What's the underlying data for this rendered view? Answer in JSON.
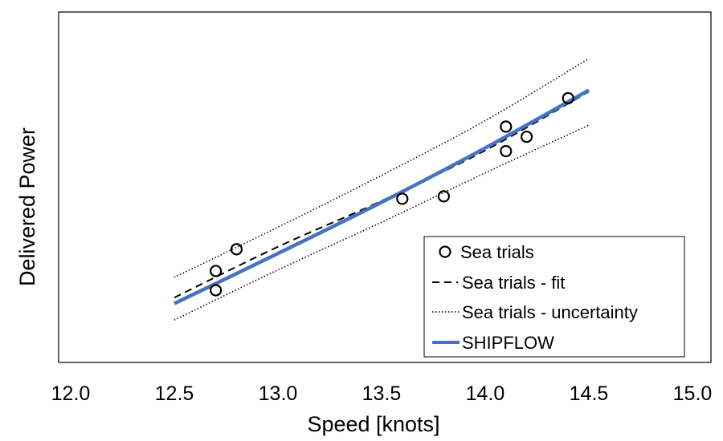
{
  "chart_data": {
    "type": "scatter",
    "xlabel": "Speed [knots]",
    "ylabel": "Delivered Power",
    "xlim": [
      12.0,
      15.0
    ],
    "x_ticks": [
      "12.0",
      "12.5",
      "13.0",
      "13.5",
      "14.0",
      "14.5",
      "15.0"
    ],
    "y_ticks_shown": false,
    "ylim": [
      0,
      100
    ],
    "grid": false,
    "legend_position": "bottom-right",
    "series": [
      {
        "name": "Sea trials",
        "kind": "markers",
        "marker": "open-circle",
        "color": "#000000",
        "points": [
          {
            "x": 12.7,
            "y": 26.1
          },
          {
            "x": 12.7,
            "y": 20.6
          },
          {
            "x": 12.8,
            "y": 32.3
          },
          {
            "x": 13.6,
            "y": 46.7
          },
          {
            "x": 13.8,
            "y": 47.4
          },
          {
            "x": 14.1,
            "y": 67.3
          },
          {
            "x": 14.1,
            "y": 60.3
          },
          {
            "x": 14.2,
            "y": 64.4
          },
          {
            "x": 14.4,
            "y": 75.4
          }
        ]
      },
      {
        "name": "Sea trials - fit",
        "kind": "line",
        "dash": "dashed",
        "color": "#000000",
        "x": [
          12.5,
          13.0,
          13.5,
          14.0,
          14.5
        ],
        "y": [
          18.5,
          33.0,
          46.1,
          60.5,
          77.3
        ]
      },
      {
        "name": "Sea trials - uncertainty",
        "kind": "band-lines",
        "dash": "dotted",
        "color": "#000000",
        "x": [
          12.5,
          13.0,
          13.5,
          14.0,
          14.5
        ],
        "upper": [
          24.3,
          38.6,
          53.4,
          69.0,
          86.7
        ],
        "lower": [
          12.1,
          26.4,
          40.0,
          54.1,
          67.7
        ]
      },
      {
        "name": "SHIPFLOW",
        "kind": "line",
        "dash": "solid",
        "color": "#4472c4",
        "x": [
          12.5,
          13.0,
          13.5,
          14.0,
          14.5
        ],
        "y": [
          16.8,
          31.1,
          45.7,
          61.2,
          77.7
        ]
      }
    ]
  }
}
